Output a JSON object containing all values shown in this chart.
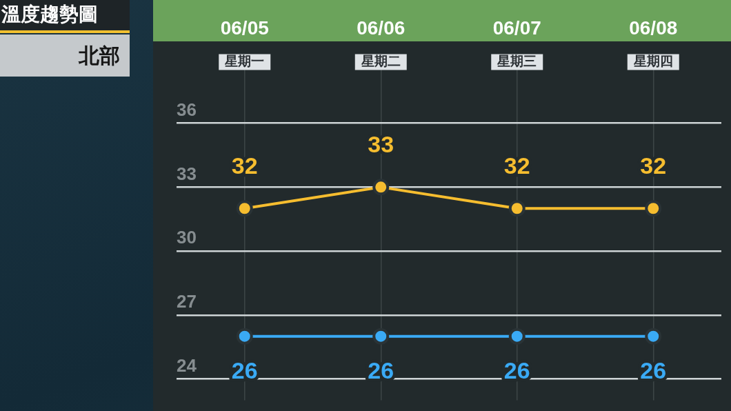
{
  "chart_data": {
    "type": "line",
    "title": "溫度趨勢圖",
    "subtitle": "北部",
    "categories": [
      "06/05\n星期一",
      "06/06\n星期二",
      "06/07\n星期三",
      "06/08\n星期四"
    ],
    "series": [
      {
        "color": "#f6bd2f",
        "values": [
          32,
          33,
          32,
          32
        ]
      },
      {
        "color": "#3aaaf5",
        "values": [
          26,
          26,
          26,
          26
        ]
      }
    ],
    "ylim": [
      23,
      38.5
    ],
    "yticks": [
      24,
      27,
      30,
      33,
      36
    ],
    "grid": true,
    "marker": "circle",
    "line_style": "solid",
    "data_labels": true
  }
}
